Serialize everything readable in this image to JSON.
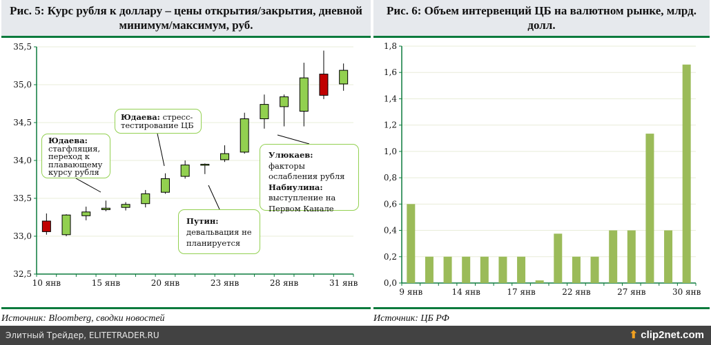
{
  "left_panel": {
    "title": "Рис. 5: Курс рубля к доллару – цены открытия/закрытия, дневной минимум/максимум, руб.",
    "source": "Источник: Bloomberg, сводки новостей"
  },
  "right_panel": {
    "title": "Рис. 6: Объем интервенций ЦБ на валютном рынке, млрд. долл.",
    "source": "Источник: ЦБ РФ"
  },
  "annotations": [
    {
      "bold": "Юдаева:",
      "text": "стагфляция, переход к плавающему курсу рубля"
    },
    {
      "bold": "Юдаева:",
      "text": "стресс-тестирование ЦБ"
    },
    {
      "bold": "Путин:",
      "text": "девальвация не планируется"
    },
    {
      "bold": "Улюкаев:",
      "text": "факторы ослабления рубля",
      "bold2": "Набиулина:",
      "text2": "выступление на Первом Канале"
    }
  ],
  "footer": {
    "site": "Элитный Трейдер, ELITETRADER.RU",
    "logo": "clip2net.com"
  },
  "chart_data": [
    {
      "type": "candlestick",
      "ylim": [
        32.5,
        35.5
      ],
      "yticks": [
        "32,5",
        "33,0",
        "33,5",
        "34,0",
        "34,5",
        "35,0",
        "35,5"
      ],
      "categories": [
        "10 янв",
        "13 янв",
        "14 янв",
        "15 янв",
        "16 янв",
        "17 янв",
        "20 янв",
        "21 янв",
        "22 янв",
        "23 янв",
        "24 янв",
        "27 янв",
        "28 янв",
        "29 янв",
        "30 янв",
        "31 янв"
      ],
      "xtick_labels": [
        {
          "index": 0,
          "label": "10 янв"
        },
        {
          "index": 3,
          "label": "15 янв"
        },
        {
          "index": 6,
          "label": "20 янв"
        },
        {
          "index": 9,
          "label": "23 янв"
        },
        {
          "index": 12,
          "label": "28 янв"
        },
        {
          "index": 15,
          "label": "31 янв"
        }
      ],
      "open": [
        33.2,
        33.02,
        33.27,
        33.35,
        33.38,
        33.43,
        33.58,
        33.79,
        33.94,
        34.01,
        34.11,
        34.55,
        34.71,
        34.65,
        35.14,
        35.01
      ],
      "close": [
        33.06,
        33.28,
        33.32,
        33.37,
        33.42,
        33.56,
        33.76,
        33.94,
        33.95,
        34.09,
        34.55,
        34.74,
        34.84,
        35.09,
        34.86,
        35.19
      ],
      "high": [
        33.3,
        33.29,
        33.39,
        33.47,
        33.45,
        33.61,
        33.83,
        34.0,
        33.96,
        34.2,
        34.63,
        34.87,
        34.87,
        35.29,
        35.45,
        35.28
      ],
      "low": [
        33.02,
        33.0,
        33.21,
        33.33,
        33.34,
        33.38,
        33.56,
        33.76,
        33.82,
        33.98,
        34.09,
        34.42,
        34.45,
        34.45,
        34.81,
        34.92
      ],
      "colors": {
        "up": "#92d050",
        "down": "#c00000"
      },
      "grid": true
    },
    {
      "type": "bar",
      "ylim": [
        0,
        1.8
      ],
      "yticks": [
        "0,0",
        "0,2",
        "0,4",
        "0,6",
        "0,8",
        "1,0",
        "1,2",
        "1,4",
        "1,6",
        "1,8"
      ],
      "categories": [
        "9 янв",
        "10 янв",
        "13 янв",
        "14 янв",
        "15 янв",
        "16 янв",
        "17 янв",
        "20 янв",
        "21 янв",
        "22 янв",
        "23 янв",
        "24 янв",
        "27 янв",
        "28 янв",
        "29 янв",
        "30 янв"
      ],
      "xtick_labels": [
        {
          "index": 0,
          "label": "9 янв"
        },
        {
          "index": 3,
          "label": "14 янв"
        },
        {
          "index": 6,
          "label": "17 янв"
        },
        {
          "index": 9,
          "label": "22 янв"
        },
        {
          "index": 12,
          "label": "27 янв"
        },
        {
          "index": 15,
          "label": "30 янв"
        }
      ],
      "values": [
        0.6,
        0.2,
        0.2,
        0.2,
        0.2,
        0.2,
        0.2,
        0.02,
        0.375,
        0.2,
        0.2,
        0.4,
        0.4,
        1.135,
        0.4,
        1.66
      ],
      "color": "#9bbb59",
      "grid": true
    }
  ]
}
